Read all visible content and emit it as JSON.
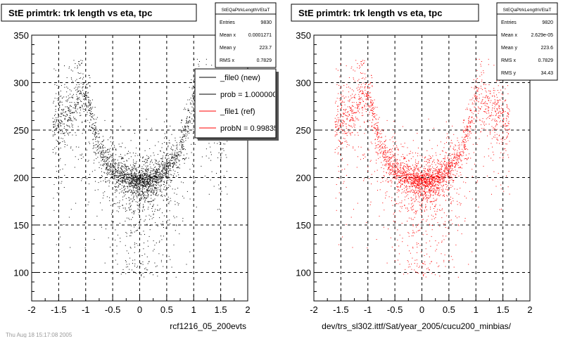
{
  "panels": [
    {
      "id": "left",
      "title": "StE primtrk: trk length vs eta, tpc",
      "stats": {
        "name": "StEQaPtrkLengthVEtaT",
        "rows": [
          {
            "label": "Entries",
            "value": "9830"
          },
          {
            "label": "Mean x",
            "value": "0.0001271"
          },
          {
            "label": "Mean y",
            "value": "223.7"
          },
          {
            "label": "RMS x",
            "value": "0.7829"
          }
        ]
      },
      "legend": {
        "entries": [
          {
            "text": "_file0 (new)",
            "color": "#000000"
          },
          {
            "text": "prob = 1.000000",
            "color": "#000000"
          },
          {
            "text": "_file1 (ref)",
            "color": "#ff0000"
          },
          {
            "text": "probN = 0.998350",
            "color": "#ff0000"
          }
        ]
      },
      "footer": "rcf1216_05_200evts",
      "marker_color": "#000000"
    },
    {
      "id": "right",
      "title": "StE primtrk: trk length vs eta, tpc",
      "stats": {
        "name": "StEQaPtrkLengthVEtaT",
        "rows": [
          {
            "label": "Entries",
            "value": "9820"
          },
          {
            "label": "Mean x",
            "value": "2.629e-05"
          },
          {
            "label": "Mean y",
            "value": "223.6"
          },
          {
            "label": "RMS x",
            "value": "0.7829"
          },
          {
            "label": "RMS y",
            "value": "34.43"
          }
        ]
      },
      "footer": "dev/trs_sl302.ittf/Sat/year_2005/cucu200_minbias/",
      "marker_color": "#ff0000"
    }
  ],
  "bottom_left_text": "Thu Aug 18 15:17:08 2005",
  "chart_data": [
    {
      "type": "scatter",
      "title": "StE primtrk: trk length vs eta, tpc",
      "xlabel": "",
      "ylabel": "",
      "xlim": [
        -2,
        2
      ],
      "ylim": [
        70,
        350
      ],
      "xticks": [
        -2,
        -1.5,
        -1,
        -0.5,
        0,
        0.5,
        1,
        1.5,
        2
      ],
      "yticks": [
        100,
        150,
        200,
        250,
        300,
        350
      ],
      "grid": true,
      "entries": 9830,
      "series": [
        {
          "color": "#000000",
          "x": [
            -1.5,
            -1.25,
            -1.0,
            -0.75,
            -0.5,
            -0.25,
            0.0,
            0.25,
            0.5,
            0.75,
            1.0,
            1.25,
            1.5
          ],
          "y": [
            250,
            272,
            290,
            258,
            220,
            205,
            196,
            205,
            218,
            242,
            276,
            262,
            240
          ]
        }
      ]
    },
    {
      "type": "scatter",
      "title": "StE primtrk: trk length vs eta, tpc",
      "xlabel": "",
      "ylabel": "",
      "xlim": [
        -2,
        2
      ],
      "ylim": [
        70,
        350
      ],
      "xticks": [
        -2,
        -1.5,
        -1,
        -0.5,
        0,
        0.5,
        1,
        1.5,
        2
      ],
      "yticks": [
        100,
        150,
        200,
        250,
        300,
        350
      ],
      "grid": true,
      "entries": 9820,
      "series": [
        {
          "color": "#ff0000",
          "x": [
            -1.5,
            -1.25,
            -1.0,
            -0.75,
            -0.5,
            -0.25,
            0.0,
            0.25,
            0.5,
            0.75,
            1.0,
            1.25,
            1.5
          ],
          "y": [
            250,
            272,
            290,
            258,
            220,
            205,
            196,
            205,
            218,
            242,
            276,
            262,
            240
          ]
        }
      ]
    }
  ]
}
